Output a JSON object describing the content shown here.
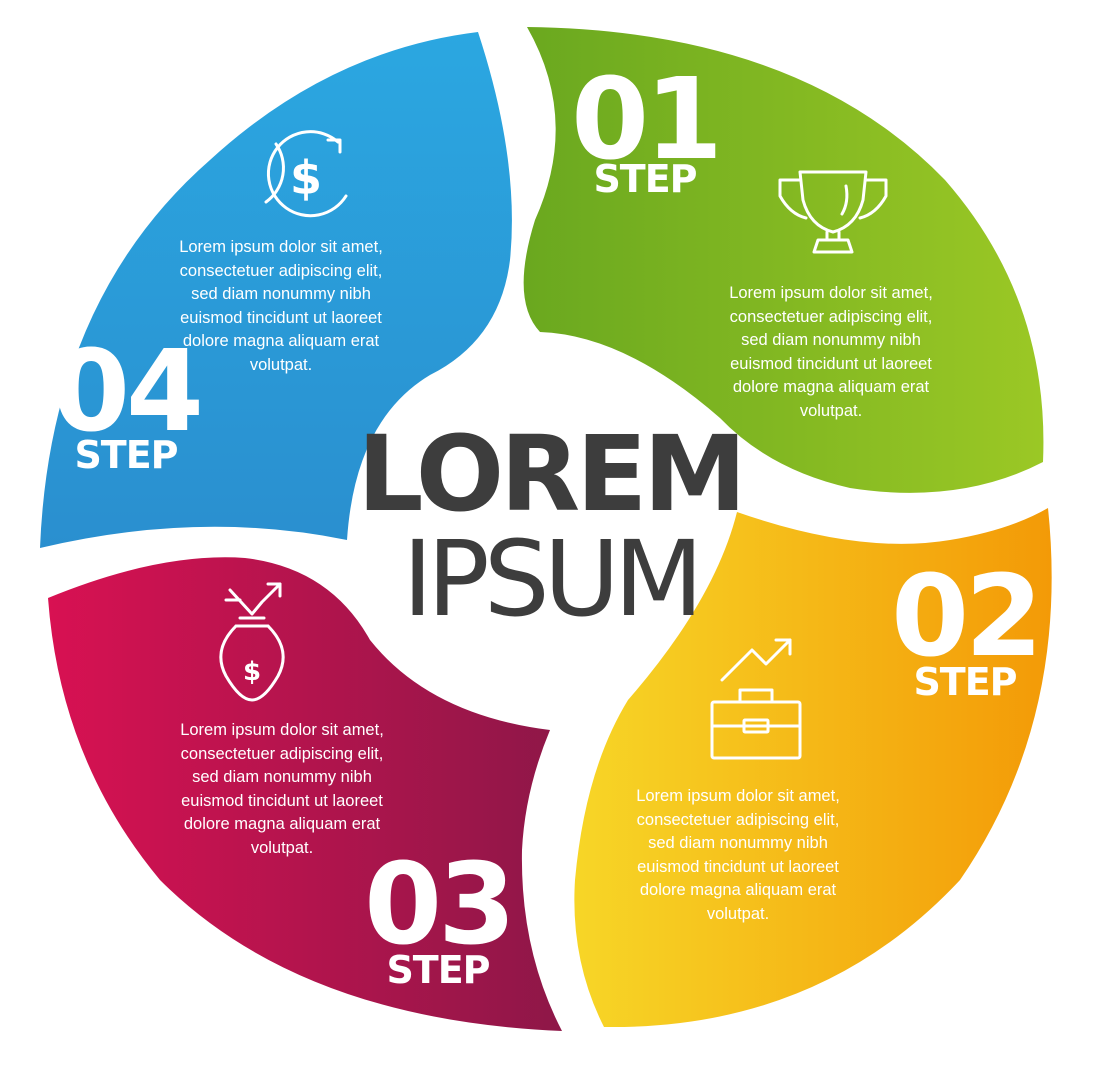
{
  "colors": {
    "step1_start": "#6aa81f",
    "step1_end": "#9bc825",
    "step2_start": "#f7d627",
    "step2_end": "#f39a07",
    "step3_start": "#d81152",
    "step3_end": "#8e1748",
    "step4_start": "#2ba7e1",
    "step4_end": "#2a8fcf",
    "center_text": "#3d3d3d"
  },
  "center": {
    "title": "LOREM",
    "subtitle": "IPSUM"
  },
  "steps": [
    {
      "number": "01",
      "label": "STEP",
      "icon": "trophy-icon",
      "text": "Lorem ipsum dolor sit amet,\nconsectetuer adipiscing elit,\nsed diam nonummy nibh\neuismod tincidunt ut laoreet\ndolore magna aliquam erat\nvolutpat."
    },
    {
      "number": "02",
      "label": "STEP",
      "icon": "briefcase-growth-icon",
      "text": "Lorem ipsum dolor sit amet,\nconsectetuer adipiscing elit,\nsed diam nonummy nibh\neuismod tincidunt ut laoreet\ndolore magna aliquam erat\nvolutpat."
    },
    {
      "number": "03",
      "label": "STEP",
      "icon": "money-bag-icon",
      "text": "Lorem ipsum dolor sit amet,\nconsectetuer adipiscing elit,\nsed diam nonummy nibh\neuismod tincidunt ut laoreet\ndolore magna aliquam erat\nvolutpat."
    },
    {
      "number": "04",
      "label": "STEP",
      "icon": "dollar-exchange-icon",
      "text": "Lorem ipsum dolor sit amet,\nconsectetuer adipiscing elit,\nsed diam nonummy nibh\neuismod tincidunt ut laoreet\ndolore magna aliquam erat\nvolutpat."
    }
  ]
}
